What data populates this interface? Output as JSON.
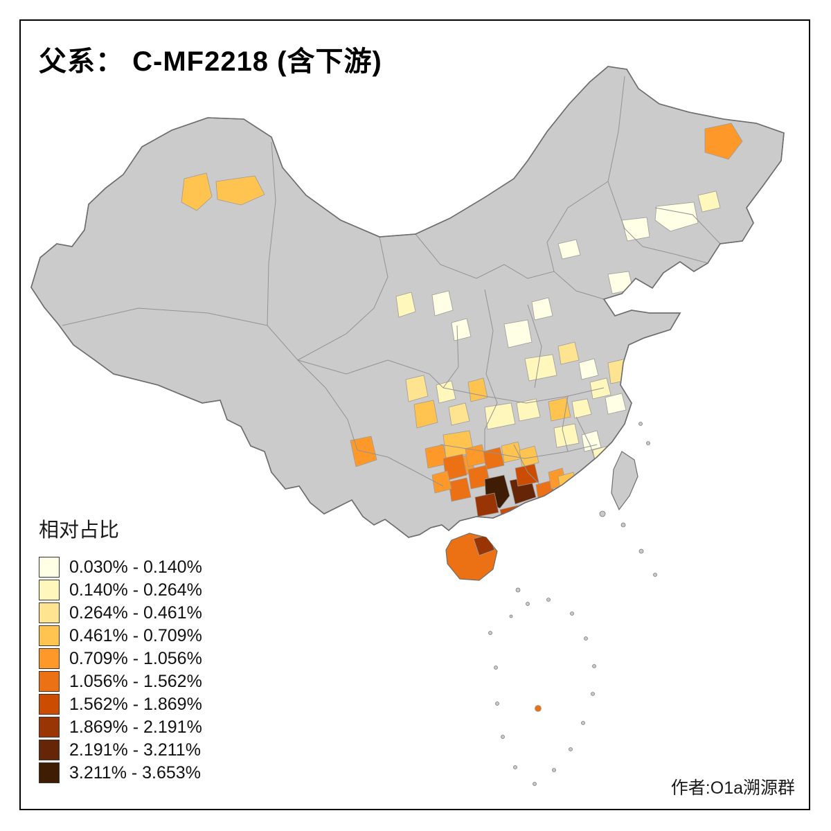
{
  "title": "父系： C-MF2218 (含下游)",
  "attribution": "作者:O1a溯源群",
  "legend": {
    "title": "相对占比",
    "classes": [
      {
        "label": "0.030% - 0.140%",
        "color": "#FFFFE5"
      },
      {
        "label": "0.140% - 0.264%",
        "color": "#FFF7BC"
      },
      {
        "label": "0.264% - 0.461%",
        "color": "#FEE391"
      },
      {
        "label": "0.461% - 0.709%",
        "color": "#FEC44F"
      },
      {
        "label": "0.709% - 1.056%",
        "color": "#FE9929"
      },
      {
        "label": "1.056% - 1.562%",
        "color": "#EC7014"
      },
      {
        "label": "1.562% - 1.869%",
        "color": "#CC4C02"
      },
      {
        "label": "1.869% - 2.191%",
        "color": "#993404"
      },
      {
        "label": "2.191% - 3.211%",
        "color": "#662506"
      },
      {
        "label": "3.211% - 3.653%",
        "color": "#3E1D04"
      }
    ]
  },
  "map": {
    "background": "#FFFFFF",
    "palette": {
      "base": "#CBCBCB",
      "outline": "#6E6E6E",
      "inner": "#929292",
      "regionStroke": "#9B9B9B",
      "islandFill": "#C9C9C9",
      "islandStroke": "#777777",
      "c1": "#FFFFE5",
      "c2": "#FFF7BC",
      "c3": "#FEE391",
      "c4": "#FEC44F",
      "c5": "#FE9929",
      "c6": "#EC7014",
      "c7": "#CC4C02",
      "c8": "#993404",
      "c9": "#662506",
      "c10": "#3E1D04"
    }
  }
}
